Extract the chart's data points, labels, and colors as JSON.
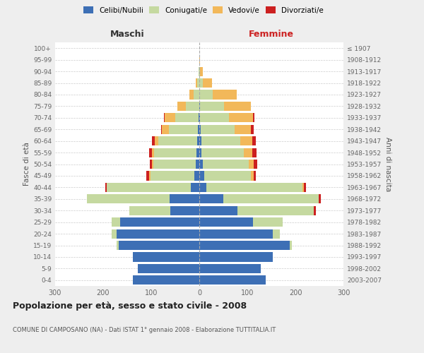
{
  "age_groups": [
    "0-4",
    "5-9",
    "10-14",
    "15-19",
    "20-24",
    "25-29",
    "30-34",
    "35-39",
    "40-44",
    "45-49",
    "50-54",
    "55-59",
    "60-64",
    "65-69",
    "70-74",
    "75-79",
    "80-84",
    "85-89",
    "90-94",
    "95-99",
    "100+"
  ],
  "birth_years": [
    "2003-2007",
    "1998-2002",
    "1993-1997",
    "1988-1992",
    "1983-1987",
    "1978-1982",
    "1973-1977",
    "1968-1972",
    "1963-1967",
    "1958-1962",
    "1953-1957",
    "1948-1952",
    "1943-1947",
    "1938-1942",
    "1933-1937",
    "1928-1932",
    "1923-1927",
    "1918-1922",
    "1913-1917",
    "1908-1912",
    "≤ 1907"
  ],
  "males_celibi": [
    138,
    128,
    138,
    168,
    172,
    165,
    60,
    62,
    18,
    10,
    8,
    6,
    5,
    3,
    2,
    0,
    0,
    0,
    0,
    0,
    0
  ],
  "males_coniugati": [
    0,
    0,
    0,
    4,
    10,
    18,
    85,
    172,
    175,
    92,
    88,
    88,
    80,
    60,
    48,
    28,
    12,
    4,
    2,
    0,
    0
  ],
  "males_vedovi": [
    0,
    0,
    0,
    0,
    0,
    0,
    0,
    0,
    0,
    2,
    2,
    4,
    8,
    15,
    22,
    18,
    8,
    4,
    0,
    0,
    0
  ],
  "males_divorziati": [
    0,
    0,
    0,
    0,
    0,
    0,
    0,
    0,
    2,
    6,
    5,
    6,
    6,
    2,
    2,
    0,
    0,
    0,
    0,
    0,
    0
  ],
  "females_nubili": [
    138,
    128,
    153,
    188,
    153,
    112,
    80,
    50,
    15,
    10,
    8,
    5,
    5,
    3,
    2,
    2,
    0,
    0,
    0,
    0,
    0
  ],
  "females_coniugate": [
    0,
    0,
    0,
    4,
    14,
    62,
    158,
    198,
    200,
    98,
    95,
    88,
    80,
    70,
    60,
    50,
    28,
    8,
    2,
    0,
    0
  ],
  "females_vedove": [
    0,
    0,
    0,
    0,
    0,
    0,
    0,
    0,
    2,
    5,
    10,
    18,
    25,
    35,
    50,
    55,
    50,
    18,
    5,
    2,
    0
  ],
  "females_divorziate": [
    0,
    0,
    0,
    0,
    0,
    0,
    5,
    5,
    5,
    5,
    8,
    8,
    8,
    5,
    2,
    0,
    0,
    0,
    0,
    0,
    0
  ],
  "color_celibi": "#3d6fb5",
  "color_coniugati": "#c5d9a0",
  "color_vedovi": "#f2b85a",
  "color_divorziati": "#cc2020",
  "xlim": 300,
  "title": "Popolazione per età, sesso e stato civile - 2008",
  "subtitle": "COMUNE DI CAMPOSANO (NA) - Dati ISTAT 1° gennaio 2008 - Elaborazione TUTTITALIA.IT",
  "ylabel_left": "Fasce di età",
  "ylabel_right": "Anni di nascita",
  "label_maschi": "Maschi",
  "label_femmine": "Femmine",
  "bg_color": "#eeeeee",
  "plot_bg_color": "#ffffff",
  "grid_color": "#cccccc",
  "legend_labels": [
    "Celibi/Nubili",
    "Coniugati/e",
    "Vedovi/e",
    "Divorziati/e"
  ]
}
